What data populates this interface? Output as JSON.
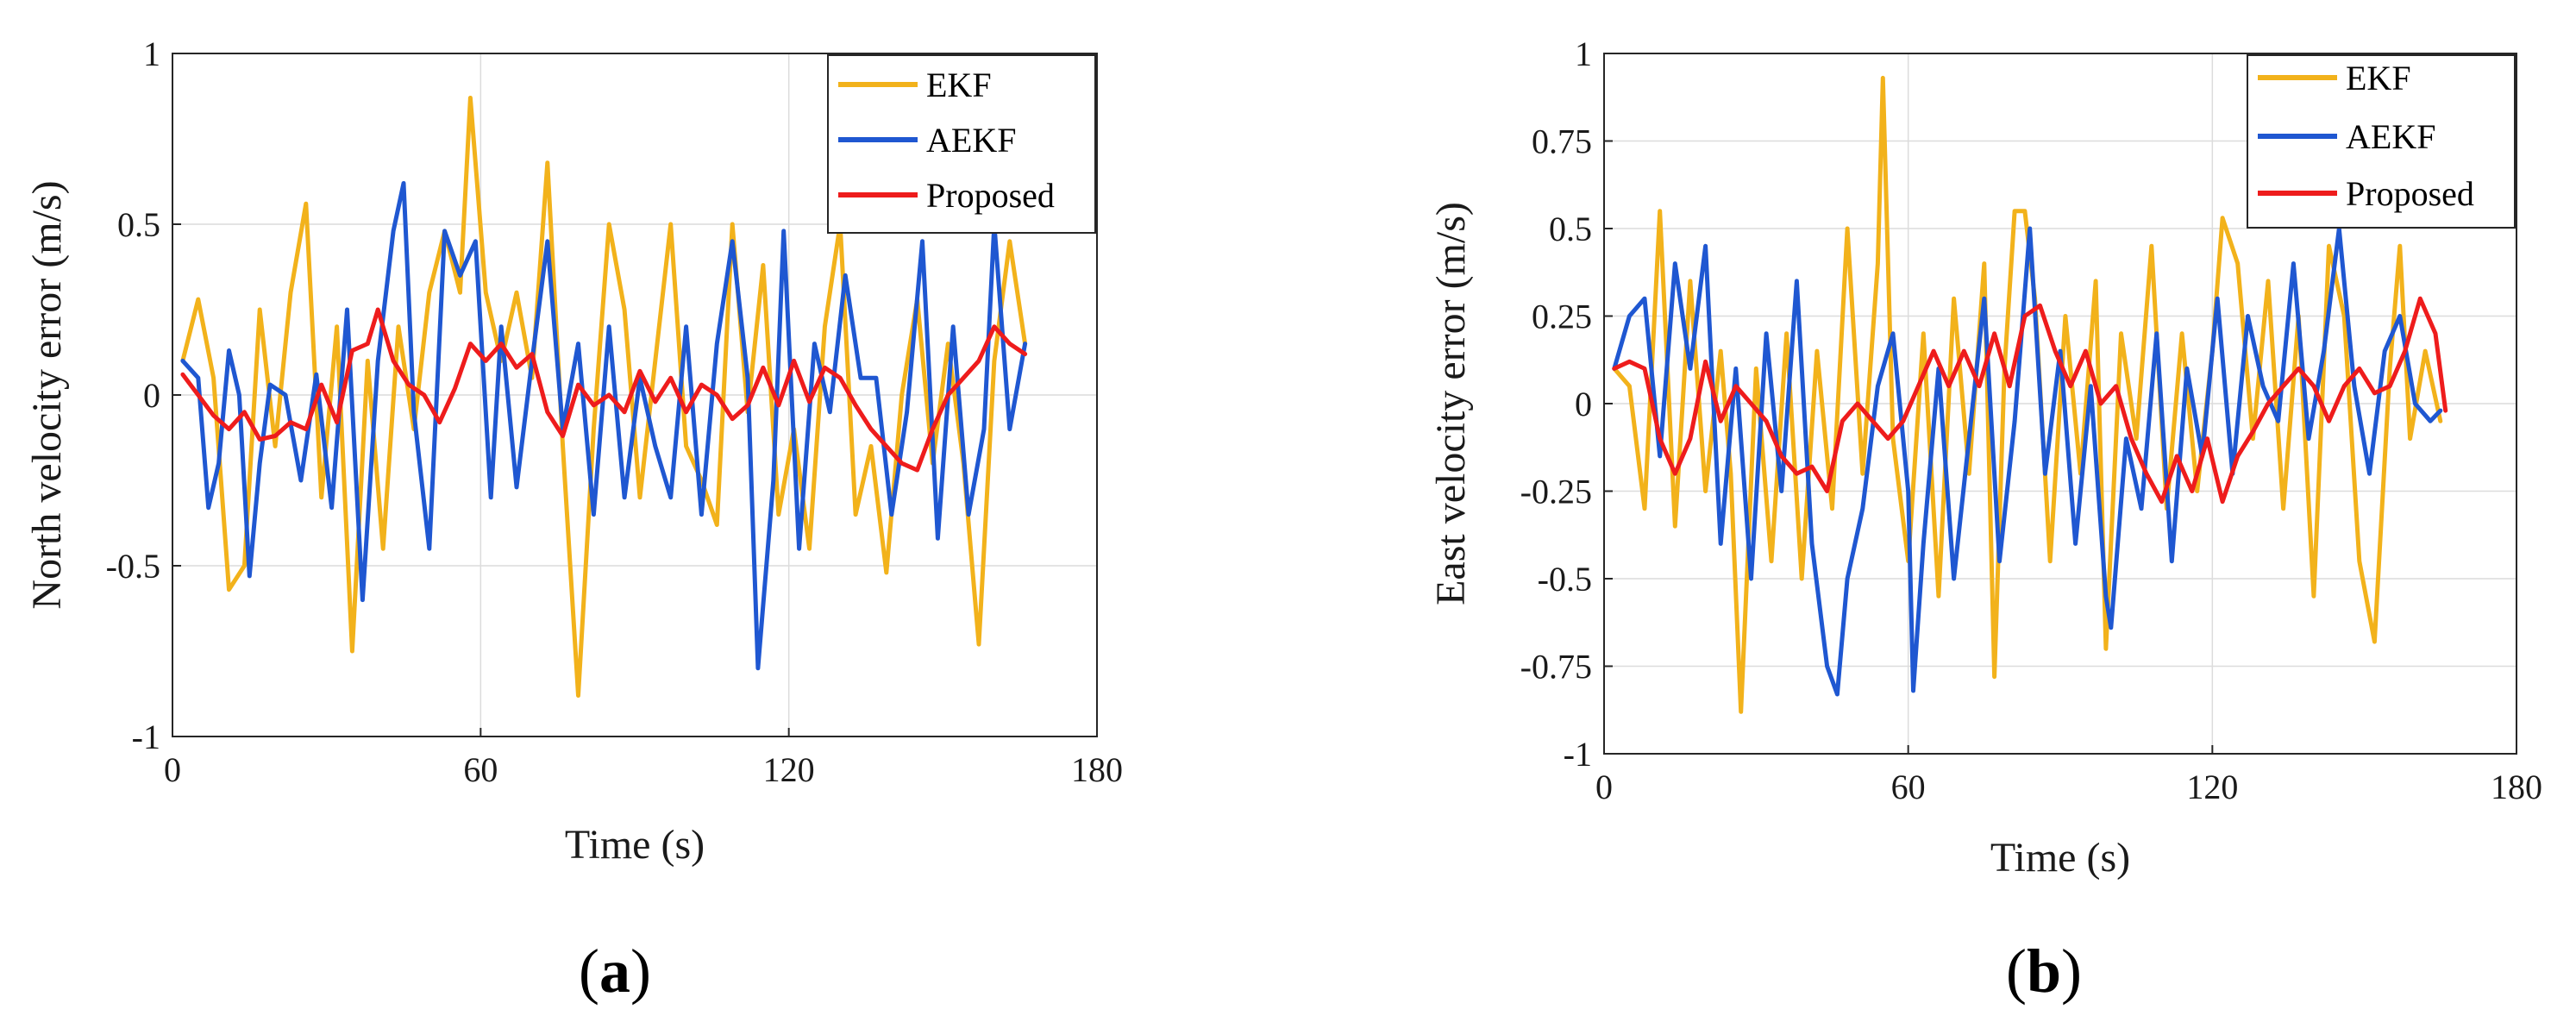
{
  "chart_data": [
    {
      "type": "line",
      "panel_label": "a",
      "xlabel": "Time (s)",
      "ylabel": "North velocity error (m/s)",
      "xlim": [
        0,
        180
      ],
      "ylim": [
        -1,
        1
      ],
      "xticks": [
        0,
        60,
        120,
        180
      ],
      "xtick_labels": [
        "0",
        "60",
        "120",
        "180"
      ],
      "yticks": [
        1,
        0.5,
        0,
        -0.5,
        -1
      ],
      "ytick_labels": [
        "1",
        "0.5",
        "0",
        "-0.5",
        "-1"
      ],
      "grid": true,
      "legend_position": "top-right",
      "series": [
        {
          "name": "EKF",
          "color": "#F2B21B",
          "x": [
            2,
            5,
            8,
            11,
            14,
            17,
            20,
            23,
            26,
            29,
            32,
            35,
            38,
            41,
            44,
            47,
            50,
            53,
            56,
            58,
            61,
            64,
            67,
            70,
            73,
            76,
            79,
            82,
            85,
            88,
            91,
            94,
            97,
            100,
            103,
            106,
            109,
            112,
            115,
            118,
            121,
            124,
            127,
            130,
            133,
            136,
            139,
            142,
            145,
            148,
            151,
            154,
            157,
            160,
            163,
            166
          ],
          "y": [
            0.1,
            0.28,
            0.05,
            -0.57,
            -0.5,
            0.25,
            -0.15,
            0.3,
            0.56,
            -0.3,
            0.2,
            -0.75,
            0.1,
            -0.45,
            0.2,
            -0.1,
            0.3,
            0.48,
            0.3,
            0.87,
            0.3,
            0.1,
            0.3,
            0.05,
            0.68,
            -0.15,
            -0.88,
            -0.1,
            0.5,
            0.25,
            -0.3,
            0.1,
            0.5,
            -0.15,
            -0.25,
            -0.38,
            0.5,
            -0.05,
            0.38,
            -0.35,
            -0.1,
            -0.45,
            0.2,
            0.5,
            -0.35,
            -0.15,
            -0.52,
            0.0,
            0.28,
            -0.2,
            0.15,
            -0.2,
            -0.73,
            0.1,
            0.45,
            0.15
          ]
        },
        {
          "name": "AEKF",
          "color": "#1F57D1",
          "x": [
            2,
            5,
            7,
            9,
            11,
            13,
            15,
            17,
            19,
            22,
            25,
            28,
            31,
            34,
            37,
            40,
            43,
            45,
            47,
            50,
            53,
            56,
            59,
            62,
            64,
            67,
            70,
            73,
            76,
            79,
            82,
            85,
            88,
            91,
            94,
            97,
            100,
            103,
            106,
            109,
            112,
            114,
            117,
            119,
            122,
            125,
            128,
            131,
            134,
            137,
            140,
            143,
            146,
            149,
            152,
            155,
            158,
            160,
            163,
            166
          ],
          "y": [
            0.1,
            0.05,
            -0.33,
            -0.2,
            0.13,
            0.0,
            -0.53,
            -0.2,
            0.03,
            0.0,
            -0.25,
            0.06,
            -0.33,
            0.25,
            -0.6,
            0.1,
            0.48,
            0.62,
            -0.05,
            -0.45,
            0.48,
            0.35,
            0.45,
            -0.3,
            0.2,
            -0.27,
            0.1,
            0.45,
            -0.1,
            0.15,
            -0.35,
            0.2,
            -0.3,
            0.05,
            -0.15,
            -0.3,
            0.2,
            -0.35,
            0.15,
            0.45,
            0.05,
            -0.8,
            -0.25,
            0.48,
            -0.45,
            0.15,
            -0.05,
            0.35,
            0.05,
            0.05,
            -0.35,
            -0.05,
            0.45,
            -0.42,
            0.2,
            -0.35,
            -0.1,
            0.5,
            -0.1,
            0.15
          ]
        },
        {
          "name": "Proposed",
          "color": "#EE1C1C",
          "x": [
            2,
            5,
            8,
            11,
            14,
            17,
            20,
            23,
            26,
            29,
            32,
            35,
            38,
            40,
            43,
            46,
            49,
            52,
            55,
            58,
            61,
            64,
            67,
            70,
            73,
            76,
            79,
            82,
            85,
            88,
            91,
            94,
            97,
            100,
            103,
            106,
            109,
            112,
            115,
            118,
            121,
            124,
            127,
            130,
            133,
            136,
            139,
            142,
            145,
            148,
            151,
            154,
            157,
            160,
            163,
            166
          ],
          "y": [
            0.06,
            0.0,
            -0.06,
            -0.1,
            -0.05,
            -0.13,
            -0.12,
            -0.08,
            -0.1,
            0.03,
            -0.08,
            0.13,
            0.15,
            0.25,
            0.1,
            0.03,
            0.0,
            -0.08,
            0.02,
            0.15,
            0.1,
            0.15,
            0.08,
            0.12,
            -0.05,
            -0.12,
            0.03,
            -0.03,
            0.0,
            -0.05,
            0.07,
            -0.02,
            0.05,
            -0.05,
            0.03,
            0.0,
            -0.07,
            -0.03,
            0.08,
            -0.03,
            0.1,
            -0.02,
            0.08,
            0.05,
            -0.03,
            -0.1,
            -0.15,
            -0.2,
            -0.22,
            -0.1,
            0.0,
            0.05,
            0.1,
            0.2,
            0.15,
            0.12
          ]
        }
      ]
    },
    {
      "type": "line",
      "panel_label": "b",
      "xlabel": "Time (s)",
      "ylabel": "East velocity error (m/s)",
      "xlim": [
        0,
        180
      ],
      "ylim": [
        -1,
        1
      ],
      "xticks": [
        0,
        60,
        120,
        180
      ],
      "xtick_labels": [
        "0",
        "60",
        "120",
        "180"
      ],
      "yticks": [
        1,
        0.75,
        0.5,
        0.25,
        0,
        -0.25,
        -0.5,
        -0.75,
        -1
      ],
      "ytick_labels": [
        "1",
        "0.75",
        "0.5",
        "0.25",
        "0",
        "-0.25",
        "-0.5",
        "-0.75",
        "-1"
      ],
      "grid": true,
      "legend_position": "top-right",
      "series": [
        {
          "name": "EKF",
          "color": "#F2B21B",
          "x": [
            2,
            5,
            8,
            11,
            14,
            17,
            20,
            23,
            25,
            27,
            30,
            33,
            36,
            39,
            42,
            45,
            48,
            51,
            54,
            55,
            57,
            60,
            63,
            66,
            69,
            72,
            75,
            77,
            79,
            81,
            83,
            85,
            88,
            91,
            94,
            97,
            99,
            102,
            105,
            108,
            111,
            114,
            117,
            120,
            122,
            125,
            128,
            131,
            134,
            137,
            140,
            143,
            146,
            149,
            152,
            155,
            157,
            159,
            162,
            165
          ],
          "y": [
            0.1,
            0.05,
            -0.3,
            0.55,
            -0.35,
            0.35,
            -0.25,
            0.15,
            -0.2,
            -0.88,
            0.1,
            -0.45,
            0.2,
            -0.5,
            0.15,
            -0.3,
            0.5,
            -0.2,
            0.4,
            0.93,
            -0.1,
            -0.45,
            0.2,
            -0.55,
            0.3,
            -0.2,
            0.4,
            -0.78,
            0.1,
            0.55,
            0.55,
            0.3,
            -0.45,
            0.25,
            -0.2,
            0.35,
            -0.7,
            0.2,
            -0.1,
            0.45,
            -0.3,
            0.2,
            -0.25,
            0.15,
            0.53,
            0.4,
            -0.1,
            0.35,
            -0.3,
            0.25,
            -0.55,
            0.45,
            0.25,
            -0.45,
            -0.68,
            0.1,
            0.45,
            -0.1,
            0.15,
            -0.05
          ]
        },
        {
          "name": "AEKF",
          "color": "#1F57D1",
          "x": [
            2,
            5,
            8,
            11,
            14,
            17,
            20,
            23,
            26,
            29,
            32,
            35,
            38,
            41,
            44,
            46,
            48,
            51,
            54,
            57,
            60,
            61,
            63,
            66,
            69,
            72,
            75,
            78,
            81,
            84,
            87,
            90,
            93,
            96,
            99,
            100,
            103,
            106,
            109,
            112,
            115,
            118,
            121,
            124,
            127,
            130,
            133,
            136,
            139,
            142,
            145,
            148,
            151,
            154,
            157,
            160,
            163,
            165
          ],
          "y": [
            0.1,
            0.25,
            0.3,
            -0.15,
            0.4,
            0.1,
            0.45,
            -0.4,
            0.1,
            -0.5,
            0.2,
            -0.25,
            0.35,
            -0.4,
            -0.75,
            -0.83,
            -0.5,
            -0.3,
            0.05,
            0.2,
            -0.25,
            -0.82,
            -0.4,
            0.1,
            -0.5,
            -0.1,
            0.3,
            -0.45,
            -0.05,
            0.5,
            -0.2,
            0.15,
            -0.4,
            0.05,
            -0.55,
            -0.64,
            -0.1,
            -0.3,
            0.2,
            -0.45,
            0.1,
            -0.15,
            0.3,
            -0.2,
            0.25,
            0.05,
            -0.05,
            0.4,
            -0.1,
            0.15,
            0.5,
            0.05,
            -0.2,
            0.15,
            0.25,
            0.0,
            -0.05,
            -0.02
          ]
        },
        {
          "name": "Proposed",
          "color": "#EE1C1C",
          "x": [
            2,
            5,
            8,
            11,
            14,
            17,
            20,
            23,
            26,
            29,
            32,
            35,
            38,
            41,
            44,
            47,
            50,
            53,
            56,
            59,
            62,
            65,
            68,
            71,
            74,
            77,
            80,
            83,
            86,
            89,
            92,
            95,
            98,
            101,
            104,
            107,
            110,
            113,
            116,
            119,
            122,
            125,
            128,
            131,
            134,
            137,
            140,
            143,
            146,
            149,
            152,
            155,
            158,
            161,
            164,
            166
          ],
          "y": [
            0.1,
            0.12,
            0.1,
            -0.1,
            -0.2,
            -0.1,
            0.12,
            -0.05,
            0.05,
            0.0,
            -0.05,
            -0.15,
            -0.2,
            -0.18,
            -0.25,
            -0.05,
            0.0,
            -0.05,
            -0.1,
            -0.05,
            0.05,
            0.15,
            0.05,
            0.15,
            0.05,
            0.2,
            0.05,
            0.25,
            0.28,
            0.15,
            0.05,
            0.15,
            0.0,
            0.05,
            -0.1,
            -0.2,
            -0.28,
            -0.15,
            -0.25,
            -0.1,
            -0.28,
            -0.15,
            -0.08,
            0.0,
            0.05,
            0.1,
            0.05,
            -0.05,
            0.05,
            0.1,
            0.03,
            0.05,
            0.15,
            0.3,
            0.2,
            -0.02
          ]
        }
      ]
    }
  ]
}
